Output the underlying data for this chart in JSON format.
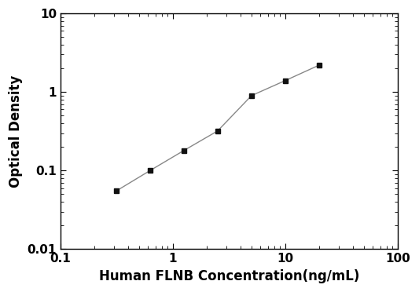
{
  "x": [
    0.313,
    0.625,
    1.25,
    2.5,
    5,
    10,
    20
  ],
  "y": [
    0.055,
    0.1,
    0.18,
    0.32,
    0.9,
    1.4,
    2.2
  ],
  "xlabel": "Human FLNB Concentration(ng/mL)",
  "ylabel": "Optical Density",
  "xlim": [
    0.1,
    100
  ],
  "ylim": [
    0.01,
    10
  ],
  "line_color": "#888888",
  "marker_color": "#111111",
  "marker": "s",
  "marker_size": 5,
  "line_width": 1.0,
  "background_color": "#ffffff",
  "xticks": [
    0.1,
    1,
    10,
    100
  ],
  "yticks": [
    0.01,
    0.1,
    1,
    10
  ],
  "xtick_labels": [
    "0.1",
    "1",
    "10",
    "100"
  ],
  "ytick_labels": [
    "0.01",
    "0.1",
    "1",
    "10"
  ],
  "label_fontsize": 12,
  "tick_fontsize": 11
}
